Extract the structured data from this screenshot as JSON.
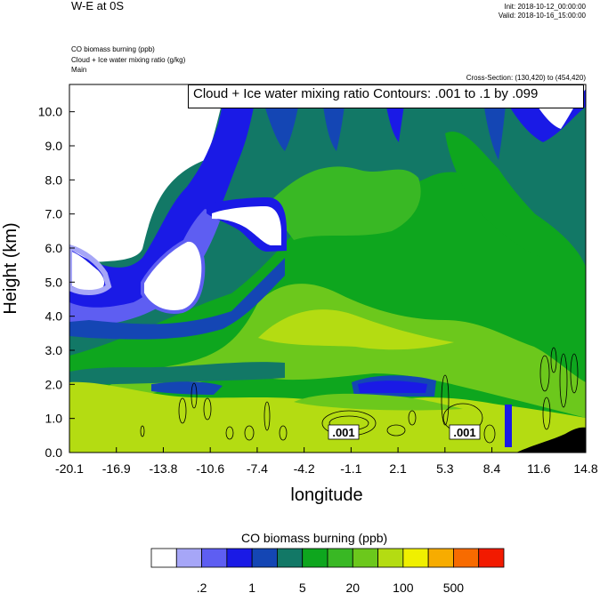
{
  "header": {
    "title": "W-E at 0S",
    "init": "Init: 2018-10-12_00:00:00",
    "valid": "Valid: 2018-10-16_15:00:00",
    "field1": "CO biomass burning   (ppb)",
    "field2": "Cloud + Ice water mixing ratio   (g/kg)",
    "field3": "Main",
    "cross_section": "Cross-Section: (130,420) to (454,420)"
  },
  "contour_label": "Cloud + Ice water mixing ratio Contours: .001 to .1 by .099",
  "inline_labels": [
    ".001",
    ".001"
  ],
  "colors": {
    "levels": [
      "#ffffff",
      "#a6a6f7",
      "#5e5ef2",
      "#1a1ae6",
      "#1446b4",
      "#127866",
      "#0ea61e",
      "#39b824",
      "#6cc81c",
      "#b4dc12",
      "#f0f000",
      "#f7ac00",
      "#f76b00",
      "#f21a00"
    ]
  },
  "chart_data": {
    "type": "heatmap",
    "title": "W-E at 0S",
    "xlabel": "longitude",
    "ylabel": "Height (km)",
    "x_ticks": [
      "-20.1",
      "-16.9",
      "-13.8",
      "-10.6",
      "-7.4",
      "-4.2",
      "-1.1",
      "2.1",
      "5.3",
      "8.4",
      "11.6",
      "14.8"
    ],
    "y_ticks": [
      "0.0",
      "1.0",
      "2.0",
      "3.0",
      "4.0",
      "5.0",
      "6.0",
      "7.0",
      "8.0",
      "9.0",
      "10.0"
    ],
    "xlim": [
      -20.1,
      14.8
    ],
    "ylim": [
      0,
      10.8
    ],
    "colorbar": {
      "title": "CO biomass burning  (ppb)",
      "labels": [
        ".2",
        "1",
        "5",
        "20",
        "100",
        "500"
      ],
      "colors": [
        "#ffffff",
        "#a6a6f7",
        "#5e5ef2",
        "#1a1ae6",
        "#1446b4",
        "#127866",
        "#0ea61e",
        "#39b824",
        "#6cc81c",
        "#b4dc12",
        "#f0f000",
        "#f7ac00",
        "#f76b00",
        "#f21a00"
      ]
    }
  }
}
